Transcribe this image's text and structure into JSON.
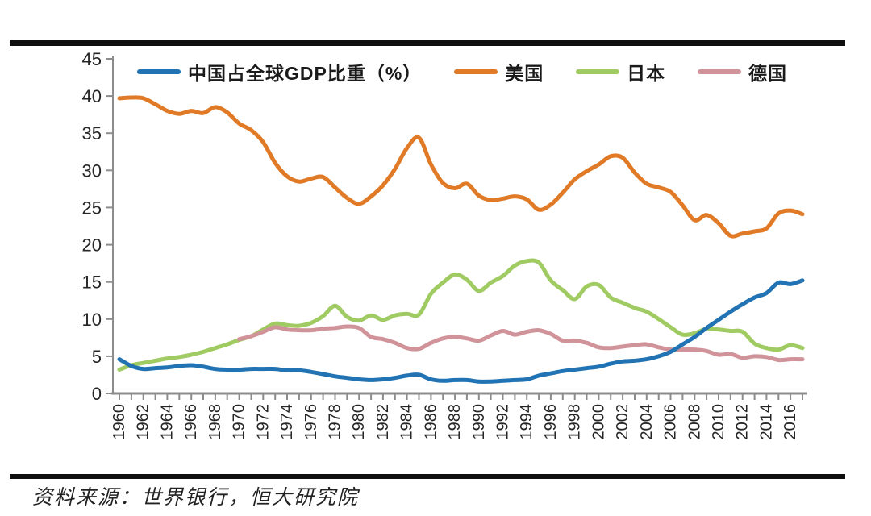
{
  "page": {
    "source_note": "资料来源：世界银行，恒大研究院"
  },
  "chart_data": {
    "type": "line",
    "title": "",
    "legend_position": "top",
    "grid": false,
    "ylim": [
      0,
      45
    ],
    "y_ticks": [
      0,
      5,
      10,
      15,
      20,
      25,
      30,
      35,
      40,
      45
    ],
    "x_tick_labels": [
      "1960",
      "1962",
      "1964",
      "1966",
      "1968",
      "1970",
      "1972",
      "1974",
      "1976",
      "1978",
      "1980",
      "1982",
      "1984",
      "1986",
      "1988",
      "1990",
      "1992",
      "1994",
      "1996",
      "1998",
      "2000",
      "2002",
      "2004",
      "2006",
      "2008",
      "2010",
      "2012",
      "2014",
      "2016"
    ],
    "years": [
      1960,
      1961,
      1962,
      1963,
      1964,
      1965,
      1966,
      1967,
      1968,
      1969,
      1970,
      1971,
      1972,
      1973,
      1974,
      1975,
      1976,
      1977,
      1978,
      1979,
      1980,
      1981,
      1982,
      1983,
      1984,
      1985,
      1986,
      1987,
      1988,
      1989,
      1990,
      1991,
      1992,
      1993,
      1994,
      1995,
      1996,
      1997,
      1998,
      1999,
      2000,
      2001,
      2002,
      2003,
      2004,
      2005,
      2006,
      2007,
      2008,
      2009,
      2010,
      2011,
      2012,
      2013,
      2014,
      2015,
      2016,
      2017
    ],
    "colors": {
      "axis": "#8c8c8c",
      "tick_text": "#262626"
    },
    "series": [
      {
        "key": "china",
        "name": "中国占全球GDP比重（%）",
        "color": "#2173b3",
        "values": [
          4.6,
          3.7,
          3.3,
          3.4,
          3.5,
          3.7,
          3.8,
          3.6,
          3.3,
          3.2,
          3.2,
          3.3,
          3.3,
          3.3,
          3.1,
          3.1,
          2.9,
          2.6,
          2.3,
          2.1,
          1.9,
          1.8,
          1.9,
          2.1,
          2.4,
          2.5,
          1.9,
          1.7,
          1.8,
          1.8,
          1.6,
          1.6,
          1.7,
          1.8,
          1.9,
          2.4,
          2.7,
          3.0,
          3.2,
          3.4,
          3.6,
          4.0,
          4.3,
          4.4,
          4.6,
          5.0,
          5.6,
          6.6,
          7.6,
          8.8,
          9.9,
          11.0,
          12.0,
          12.9,
          13.5,
          14.9,
          14.7,
          15.2
        ]
      },
      {
        "key": "usa",
        "name": "美国",
        "color": "#e07a26",
        "values": [
          39.7,
          39.8,
          39.7,
          38.9,
          38.0,
          37.6,
          38.0,
          37.7,
          38.5,
          37.8,
          36.3,
          35.4,
          33.8,
          31.0,
          29.2,
          28.5,
          28.9,
          29.1,
          27.7,
          26.3,
          25.5,
          26.5,
          28.0,
          30.2,
          33.0,
          34.4,
          30.8,
          28.3,
          27.6,
          28.2,
          26.6,
          26.0,
          26.2,
          26.5,
          26.1,
          24.7,
          25.4,
          27.0,
          28.8,
          29.9,
          30.8,
          31.9,
          31.7,
          29.7,
          28.2,
          27.7,
          27.1,
          25.3,
          23.3,
          24.0,
          22.9,
          21.2,
          21.5,
          21.8,
          22.2,
          24.2,
          24.6,
          24.1
        ]
      },
      {
        "key": "japan",
        "name": "日本",
        "color": "#a0cb63",
        "values": [
          3.2,
          3.8,
          4.1,
          4.4,
          4.7,
          4.9,
          5.2,
          5.6,
          6.1,
          6.6,
          7.2,
          7.7,
          8.6,
          9.4,
          9.2,
          9.1,
          9.5,
          10.4,
          11.8,
          10.3,
          9.8,
          10.5,
          9.9,
          10.5,
          10.7,
          10.6,
          13.4,
          14.9,
          16.0,
          15.3,
          13.8,
          14.9,
          15.8,
          17.2,
          17.8,
          17.6,
          15.2,
          13.9,
          12.7,
          14.4,
          14.6,
          12.9,
          12.2,
          11.5,
          11.0,
          10.0,
          8.9,
          7.9,
          8.1,
          8.7,
          8.6,
          8.4,
          8.3,
          6.7,
          6.1,
          5.9,
          6.5,
          6.1
        ]
      },
      {
        "key": "germany",
        "name": "德国",
        "color": "#d09399",
        "values": [
          null,
          null,
          null,
          null,
          null,
          null,
          null,
          null,
          null,
          null,
          7.3,
          7.7,
          8.3,
          8.9,
          8.6,
          8.5,
          8.5,
          8.7,
          8.8,
          9.0,
          8.8,
          7.6,
          7.3,
          6.8,
          6.1,
          6.0,
          6.8,
          7.4,
          7.6,
          7.4,
          7.1,
          7.8,
          8.4,
          7.9,
          8.3,
          8.5,
          8.0,
          7.1,
          7.1,
          6.8,
          6.2,
          6.1,
          6.3,
          6.5,
          6.6,
          6.2,
          5.9,
          5.9,
          5.9,
          5.7,
          5.2,
          5.3,
          4.8,
          5.0,
          4.9,
          4.5,
          4.6,
          4.6
        ]
      }
    ]
  }
}
